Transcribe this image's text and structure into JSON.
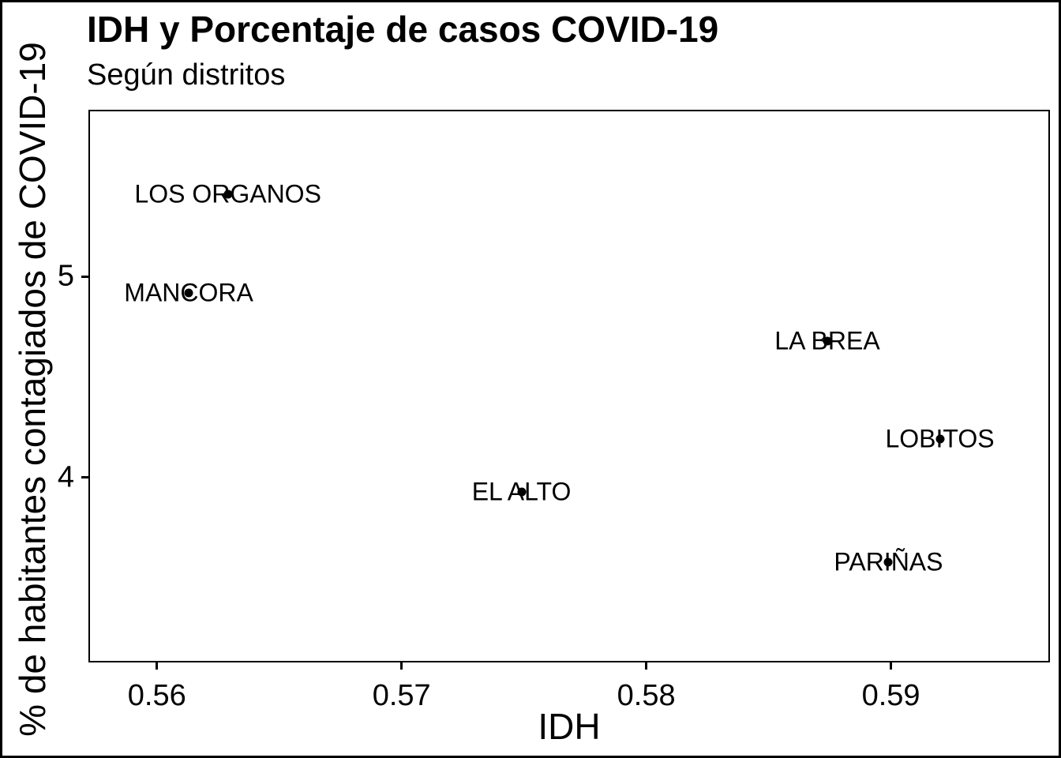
{
  "chart_data": {
    "type": "scatter",
    "title": "IDH y Porcentaje de casos COVID-19",
    "subtitle": "Según distritos",
    "xlabel": "IDH",
    "ylabel": "% de habitantes contagiados de COVID-19",
    "xlim": [
      0.5572,
      0.5965
    ],
    "ylim": [
      3.08,
      5.83
    ],
    "x_ticks": [
      "0.56",
      "0.57",
      "0.58",
      "0.59"
    ],
    "x_tick_values": [
      0.56,
      0.57,
      0.58,
      0.59
    ],
    "y_ticks": [
      "4",
      "5"
    ],
    "y_tick_values": [
      4,
      5
    ],
    "grid": false,
    "legend": "none",
    "point_color": "#000000",
    "background_color": "#ffffff",
    "points": [
      {
        "label": "LOS ORGANOS",
        "x": 0.5629,
        "y": 5.41
      },
      {
        "label": "MANCORA",
        "x": 0.5613,
        "y": 4.92
      },
      {
        "label": "LA BREA",
        "x": 0.5874,
        "y": 4.68
      },
      {
        "label": "LOBITOS",
        "x": 0.592,
        "y": 4.19
      },
      {
        "label": "EL ALTO",
        "x": 0.5749,
        "y": 3.93
      },
      {
        "label": "PARIÑAS",
        "x": 0.5899,
        "y": 3.58
      }
    ]
  }
}
